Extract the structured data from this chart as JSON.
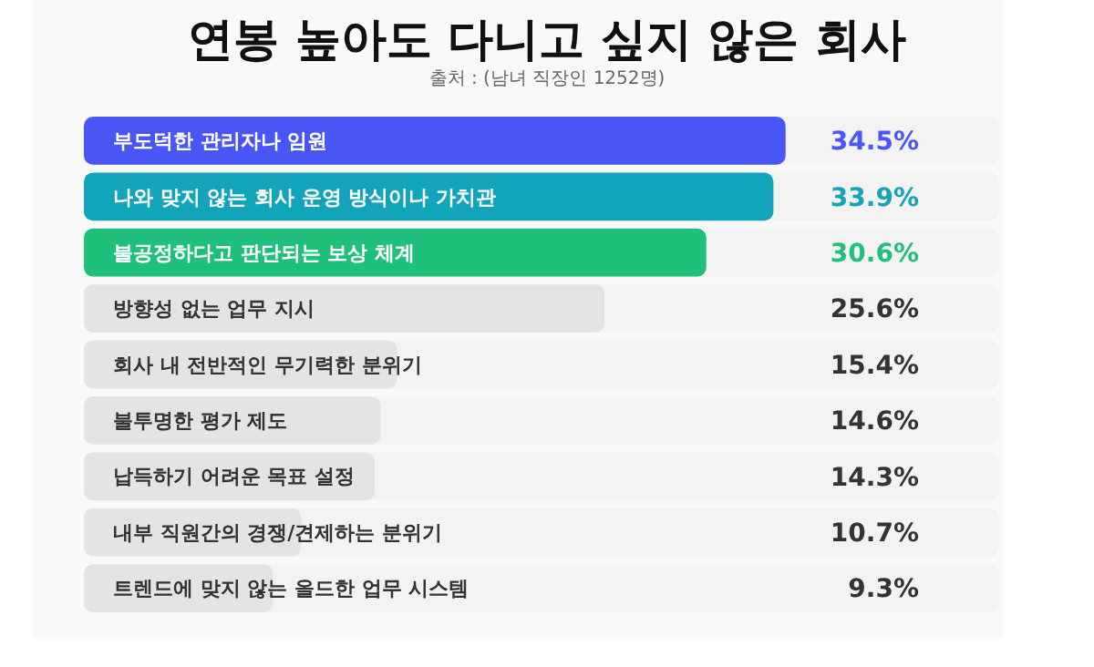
{
  "chart_data": {
    "type": "bar",
    "orientation": "horizontal",
    "title": "연봉 높아도 다니고 싶지 않은 회사",
    "subtitle": "출처 : (남녀 직장인 1252명)",
    "categories": [
      "부도덕한 관리자나 임원",
      "나와 맞지 않는 회사 운영 방식이나 가치관",
      "불공정하다고 판단되는 보상 체계",
      "방향성 없는 업무 지시",
      "회사 내 전반적인 무기력한 분위기",
      "불투명한 평가 제도",
      "납득하기 어려운 목표 설정",
      "내부 직원간의 경쟁/견제하는 분위기",
      "트렌드에 맞지 않는 올드한 업무 시스템"
    ],
    "values": [
      34.5,
      33.9,
      30.6,
      25.6,
      15.4,
      14.6,
      14.3,
      10.7,
      9.3
    ],
    "value_labels": [
      "34.5%",
      "33.9%",
      "30.6%",
      "25.6%",
      "15.4%",
      "14.6%",
      "14.3%",
      "10.7%",
      "9.3%"
    ],
    "colors": [
      "#4a55f5",
      "#12a4ba",
      "#1fc07c",
      "#e4e4e4",
      "#e4e4e4",
      "#e4e4e4",
      "#e4e4e4",
      "#e4e4e4",
      "#e4e4e4"
    ],
    "xlim": [
      0,
      45
    ],
    "tick_labels": false
  }
}
